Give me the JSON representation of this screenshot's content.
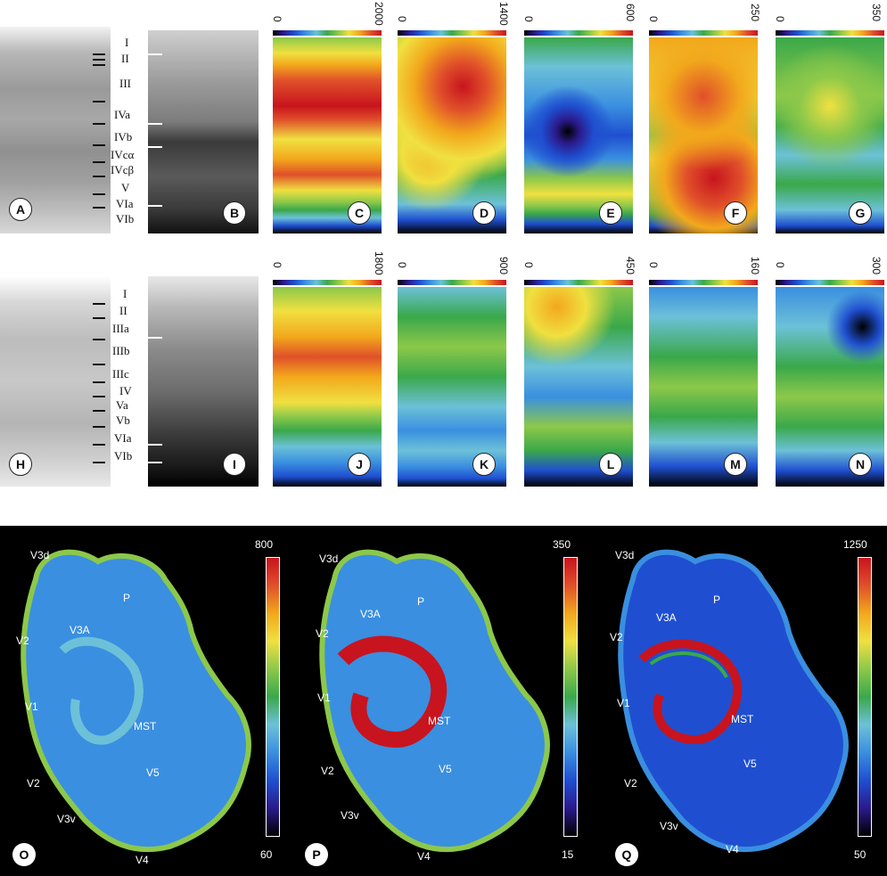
{
  "top_row": {
    "layers": [
      "I",
      "II",
      "III",
      "IVa",
      "IVb",
      "IVcα",
      "IVcβ",
      "V",
      "VIa",
      "VIb"
    ],
    "panels": [
      "A",
      "B",
      "C",
      "D",
      "E",
      "F",
      "G"
    ],
    "scale_max": [
      "2000",
      "1400",
      "600",
      "250",
      "350"
    ],
    "scale_min": "0"
  },
  "mid_row": {
    "layers": [
      "I",
      "II",
      "IIIa",
      "IIIb",
      "IIIc",
      "IV",
      "Va",
      "Vb",
      "VIa",
      "VIb"
    ],
    "panels": [
      "H",
      "I",
      "J",
      "K",
      "L",
      "M",
      "N"
    ],
    "scale_max": [
      "1800",
      "900",
      "450",
      "160",
      "300"
    ],
    "scale_min": "0"
  },
  "bottom": {
    "panels": [
      {
        "letter": "O",
        "max": "800",
        "min": "60"
      },
      {
        "letter": "P",
        "max": "350",
        "min": "15"
      },
      {
        "letter": "Q",
        "max": "1250",
        "min": "50"
      }
    ],
    "region_labels": [
      "V3d",
      "P",
      "V3A",
      "V2",
      "V1",
      "MST",
      "V2",
      "V5",
      "V3v",
      "V4"
    ]
  },
  "colors": {
    "palette": [
      "#000000",
      "#2b1a8c",
      "#1f4fd0",
      "#3a8fe0",
      "#6cc1d8",
      "#3aa84a",
      "#8cc84a",
      "#f0e040",
      "#f2a81c",
      "#e0502a",
      "#c8141e"
    ]
  }
}
